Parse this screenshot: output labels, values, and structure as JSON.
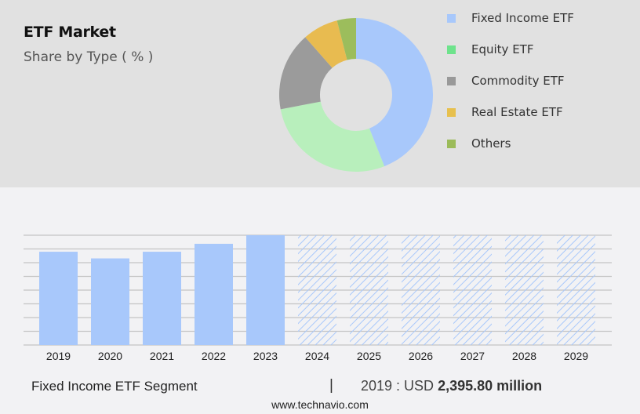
{
  "header": {
    "title": "ETF Market",
    "subtitle": "Share by Type ( % )"
  },
  "legend": [
    {
      "label": "Fixed Income ETF",
      "color": "#a8c8fb"
    },
    {
      "label": "Equity ETF",
      "color": "#6ee38c"
    },
    {
      "label": "Commodity ETF",
      "color": "#999999"
    },
    {
      "label": "Real Estate ETF",
      "color": "#e7c04e"
    },
    {
      "label": "Others",
      "color": "#9bbb59"
    }
  ],
  "footer": {
    "segment": "Fixed Income ETF Segment",
    "separator": "|",
    "year_prefix": "2019 : USD",
    "value": "2,395.80 million",
    "url": "www.technavio.com"
  },
  "chart_data": [
    {
      "type": "pie",
      "title": "ETF Market",
      "subtitle": "Share by Type ( % )",
      "donut": true,
      "categories": [
        "Fixed Income ETF",
        "Equity ETF",
        "Commodity ETF",
        "Real Estate ETF",
        "Others"
      ],
      "values": [
        44,
        28,
        16.5,
        7.5,
        4
      ],
      "colors": [
        "#a8c8fb",
        "#b8efbc",
        "#9b9b9b",
        "#e8bb50",
        "#9cbd5c"
      ],
      "legend_position": "right"
    },
    {
      "type": "bar",
      "title": "Fixed Income ETF Segment",
      "categories": [
        "2019",
        "2020",
        "2021",
        "2022",
        "2023",
        "2024",
        "2025",
        "2026",
        "2027",
        "2028",
        "2029"
      ],
      "values": [
        2395.8,
        2225,
        2395.8,
        2600,
        2820,
        null,
        null,
        null,
        null,
        null,
        null
      ],
      "forecast_years": [
        "2024",
        "2025",
        "2026",
        "2027",
        "2028",
        "2029"
      ],
      "annotation": "2019 : USD 2,395.80 million",
      "xlabel": "",
      "ylabel": "",
      "grid": true,
      "bar_color": "#a8c8fb"
    }
  ]
}
